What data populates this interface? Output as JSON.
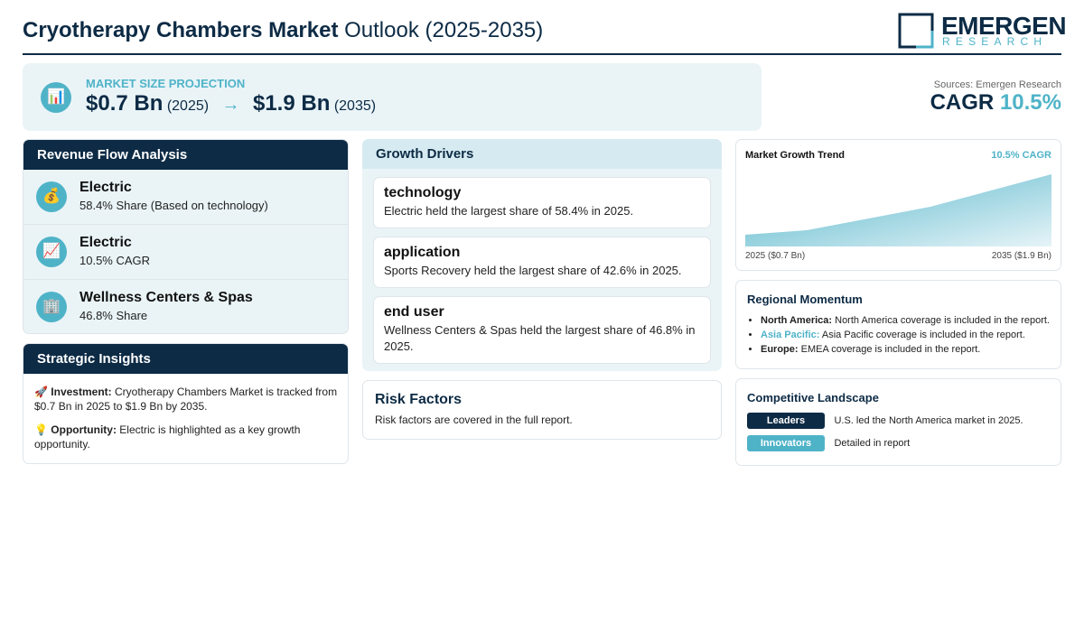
{
  "header": {
    "title_bold": "Cryotherapy Chambers Market",
    "title_rest": "Outlook (2025-2035)",
    "logo_top": "EMERGEN",
    "logo_bottom": "RESEARCH"
  },
  "projection": {
    "label": "MARKET SIZE PROJECTION",
    "icon": "📊",
    "start_value": "$0.7 Bn",
    "start_year": "(2025)",
    "arrow": "→",
    "end_value": "$1.9 Bn",
    "end_year": "(2035)"
  },
  "sources": "Sources: Emergen Research",
  "cagr": {
    "label": "CAGR",
    "value": "10.5%"
  },
  "revenue_flow": {
    "title": "Revenue Flow Analysis",
    "items": [
      {
        "icon": "💰",
        "title": "Electric",
        "text": "58.4% Share (Based on technology)"
      },
      {
        "icon": "📈",
        "title": "Electric",
        "text": "10.5% CAGR"
      },
      {
        "icon": "🏢",
        "title": "Wellness Centers & Spas",
        "text": "46.8% Share"
      }
    ]
  },
  "insights": {
    "title": "Strategic Insights",
    "items": [
      {
        "icon": "🚀",
        "label": "Investment:",
        "text": "Cryotherapy Chambers Market is tracked from $0.7 Bn in 2025 to $1.9 Bn by 2035."
      },
      {
        "icon": "💡",
        "label": "Opportunity:",
        "text": "Electric is highlighted as a key growth opportunity."
      }
    ]
  },
  "growth_drivers": {
    "title": "Growth Drivers",
    "items": [
      {
        "title": "technology",
        "text": "Electric held the largest share of 58.4% in 2025."
      },
      {
        "title": "application",
        "text": "Sports Recovery held the largest share of 42.6% in 2025."
      },
      {
        "title": "end user",
        "text": "Wellness Centers & Spas held the largest share of 46.8% in 2025."
      }
    ]
  },
  "risk": {
    "title": "Risk Factors",
    "text": "Risk factors are covered in the full report."
  },
  "trend": {
    "title": "Market Growth Trend",
    "cagr": "10.5% CAGR",
    "start": "2025 ($0.7 Bn)",
    "end": "2035 ($1.9 Bn)"
  },
  "regional": {
    "title": "Regional Momentum",
    "items": [
      {
        "label": "North America:",
        "text": "North America coverage is included in the report."
      },
      {
        "label": "Asia Pacific:",
        "text": "Asia Pacific coverage is included in the report."
      },
      {
        "label": "Europe:",
        "text": "EMEA coverage is included in the report."
      }
    ]
  },
  "competitive": {
    "title": "Competitive Landscape",
    "items": [
      {
        "badge": "Leaders",
        "text": "U.S. led the North America market in 2025."
      },
      {
        "badge": "Innovators",
        "text": "Detailed in report"
      }
    ]
  }
}
